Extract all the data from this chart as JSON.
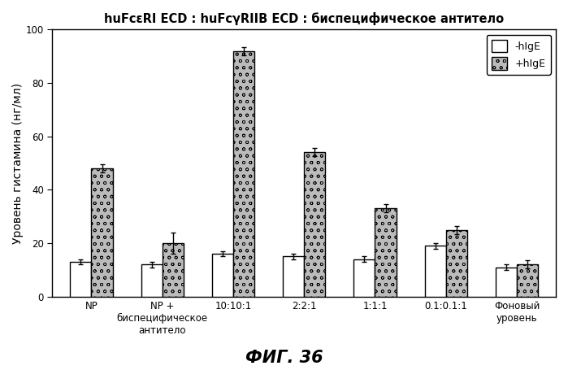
{
  "title": "huFcεRI ECD : huFcγRIIB ECD : биспецифическое антитело",
  "ylabel": "Уровень гистамина (нг/мл)",
  "caption": "ФИГ. 36",
  "categories": [
    "NP",
    "NP +\nбиспецифическое\nантитело",
    "10:10:1",
    "2:2:1",
    "1:1:1",
    "0.1:0.1:1",
    "Фоновый\nуровень"
  ],
  "minus_hIgE": [
    13,
    12,
    16,
    15,
    14,
    19,
    11
  ],
  "plus_hIgE": [
    48,
    20,
    92,
    54,
    33,
    25,
    12
  ],
  "minus_hIgE_err": [
    1.0,
    1.0,
    1.0,
    1.0,
    1.0,
    1.0,
    1.0
  ],
  "plus_hIgE_err": [
    1.5,
    4.0,
    1.5,
    1.5,
    1.5,
    1.5,
    1.5
  ],
  "ylim": [
    0,
    100
  ],
  "yticks": [
    0,
    20,
    40,
    60,
    80,
    100
  ],
  "bar_width": 0.3,
  "legend_labels": [
    "-hIgE",
    "+hIgE"
  ],
  "color_minus": "#ffffff",
  "color_plus": "#bbbbbb",
  "edgecolor": "#000000",
  "background_color": "#ffffff",
  "title_fontsize": 10.5,
  "axis_label_fontsize": 10,
  "tick_fontsize": 8.5,
  "legend_fontsize": 9,
  "caption_fontsize": 15
}
